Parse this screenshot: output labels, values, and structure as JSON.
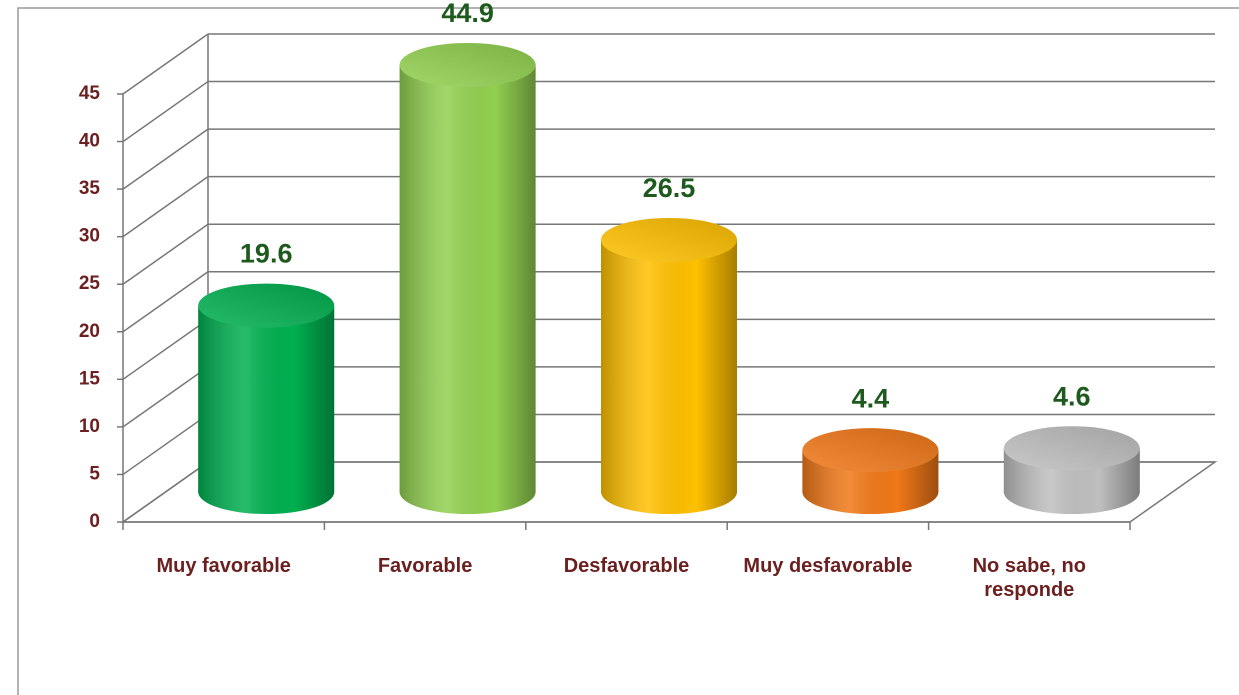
{
  "chart_data": {
    "type": "bar3d",
    "categories": [
      "Muy favorable",
      "Favorable",
      "Desfavorable",
      "Muy desfavorable",
      "No sabe, no responde"
    ],
    "values": [
      19.6,
      44.9,
      26.5,
      4.4,
      4.6
    ],
    "colors": [
      "#00b050",
      "#92d050",
      "#ffc000",
      "#f07818",
      "#bfbfbf"
    ],
    "ylim": [
      0,
      45
    ],
    "yticks": [
      0,
      5,
      10,
      15,
      20,
      25,
      30,
      35,
      40,
      45
    ],
    "grid": true
  }
}
